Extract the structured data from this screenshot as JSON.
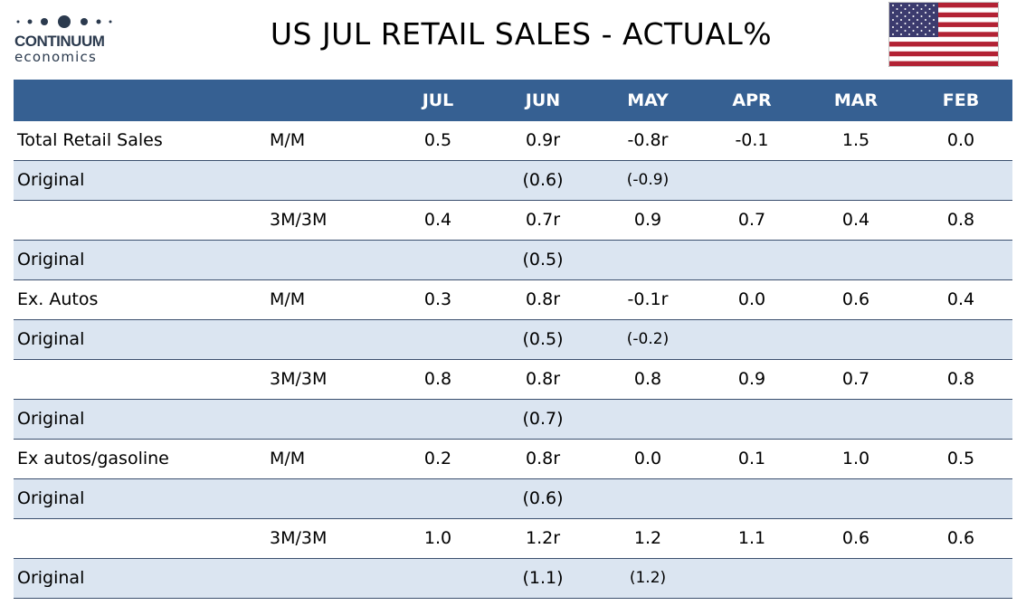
{
  "logo": {
    "word": "CONTINUUM",
    "sub": "economics"
  },
  "title": "US JUL RETAIL SALES - ACTUAL%",
  "flag": {
    "stripe_red": "#b22234",
    "canton": "#3c3b6e"
  },
  "colors": {
    "header_bg": "#366092",
    "alt_row_bg": "#dbe5f1"
  },
  "table": {
    "headers": [
      "JUL",
      "JUN",
      "MAY",
      "APR",
      "MAR",
      "FEB"
    ],
    "rows": [
      {
        "label": "Total Retail Sales",
        "measure": "M/M",
        "values": [
          "0.5",
          "0.9r",
          "-0.8r",
          "-0.1",
          "1.5",
          "0.0"
        ]
      },
      {
        "label": "Original",
        "measure": "",
        "values": [
          "",
          "(0.6)",
          "(-0.9)",
          "",
          "",
          ""
        ]
      },
      {
        "label": "",
        "measure": "3M/3M",
        "values": [
          "0.4",
          "0.7r",
          "0.9",
          "0.7",
          "0.4",
          "0.8"
        ]
      },
      {
        "label": "Original",
        "measure": "",
        "values": [
          "",
          "(0.5)",
          "",
          "",
          "",
          ""
        ]
      },
      {
        "label": "Ex. Autos",
        "measure": "M/M",
        "values": [
          "0.3",
          "0.8r",
          "-0.1r",
          "0.0",
          "0.6",
          "0.4"
        ]
      },
      {
        "label": "Original",
        "measure": "",
        "values": [
          "",
          "(0.5)",
          "(-0.2)",
          "",
          "",
          ""
        ]
      },
      {
        "label": "",
        "measure": "3M/3M",
        "values": [
          "0.8",
          "0.8r",
          "0.8",
          "0.9",
          "0.7",
          "0.8"
        ]
      },
      {
        "label": "Original",
        "measure": "",
        "values": [
          "",
          "(0.7)",
          "",
          "",
          "",
          ""
        ]
      },
      {
        "label": "Ex autos/gasoline",
        "measure": "M/M",
        "values": [
          "0.2",
          "0.8r",
          "0.0",
          "0.1",
          "1.0",
          "0.5"
        ]
      },
      {
        "label": "Original",
        "measure": "",
        "values": [
          "",
          "(0.6)",
          "",
          "",
          "",
          ""
        ]
      },
      {
        "label": "",
        "measure": "3M/3M",
        "values": [
          "1.0",
          "1.2r",
          "1.2",
          "1.1",
          "0.6",
          "0.6"
        ]
      },
      {
        "label": "Original",
        "measure": "",
        "values": [
          "",
          "(1.1)",
          "(1.2)",
          "",
          "",
          ""
        ]
      }
    ]
  },
  "chart_data": {
    "type": "table",
    "columns": [
      "JUL",
      "JUN",
      "MAY",
      "APR",
      "MAR",
      "FEB"
    ],
    "rows": [
      {
        "label": "Total Retail Sales",
        "measure": "M/M",
        "values": [
          "0.5",
          "0.9r",
          "-0.8r",
          "-0.1",
          "1.5",
          "0.0"
        ]
      },
      {
        "label": "Original",
        "measure": "",
        "values": [
          "",
          "(0.6)",
          "(-0.9)",
          "",
          "",
          ""
        ]
      },
      {
        "label": "",
        "measure": "3M/3M",
        "values": [
          "0.4",
          "0.7r",
          "0.9",
          "0.7",
          "0.4",
          "0.8"
        ]
      },
      {
        "label": "Original",
        "measure": "",
        "values": [
          "",
          "(0.5)",
          "",
          "",
          "",
          ""
        ]
      },
      {
        "label": "Ex. Autos",
        "measure": "M/M",
        "values": [
          "0.3",
          "0.8r",
          "-0.1r",
          "0.0",
          "0.6",
          "0.4"
        ]
      },
      {
        "label": "Original",
        "measure": "",
        "values": [
          "",
          "(0.5)",
          "(-0.2)",
          "",
          "",
          ""
        ]
      },
      {
        "label": "",
        "measure": "3M/3M",
        "values": [
          "0.8",
          "0.8r",
          "0.8",
          "0.9",
          "0.7",
          "0.8"
        ]
      },
      {
        "label": "Original",
        "measure": "",
        "values": [
          "",
          "(0.7)",
          "",
          "",
          "",
          ""
        ]
      },
      {
        "label": "Ex autos/gasoline",
        "measure": "M/M",
        "values": [
          "0.2",
          "0.8r",
          "0.0",
          "0.1",
          "1.0",
          "0.5"
        ]
      },
      {
        "label": "Original",
        "measure": "",
        "values": [
          "",
          "(0.6)",
          "",
          "",
          "",
          ""
        ]
      },
      {
        "label": "",
        "measure": "3M/3M",
        "values": [
          "1.0",
          "1.2r",
          "1.2",
          "1.1",
          "0.6",
          "0.6"
        ]
      },
      {
        "label": "Original",
        "measure": "",
        "values": [
          "",
          "(1.1)",
          "(1.2)",
          "",
          "",
          ""
        ]
      }
    ]
  }
}
